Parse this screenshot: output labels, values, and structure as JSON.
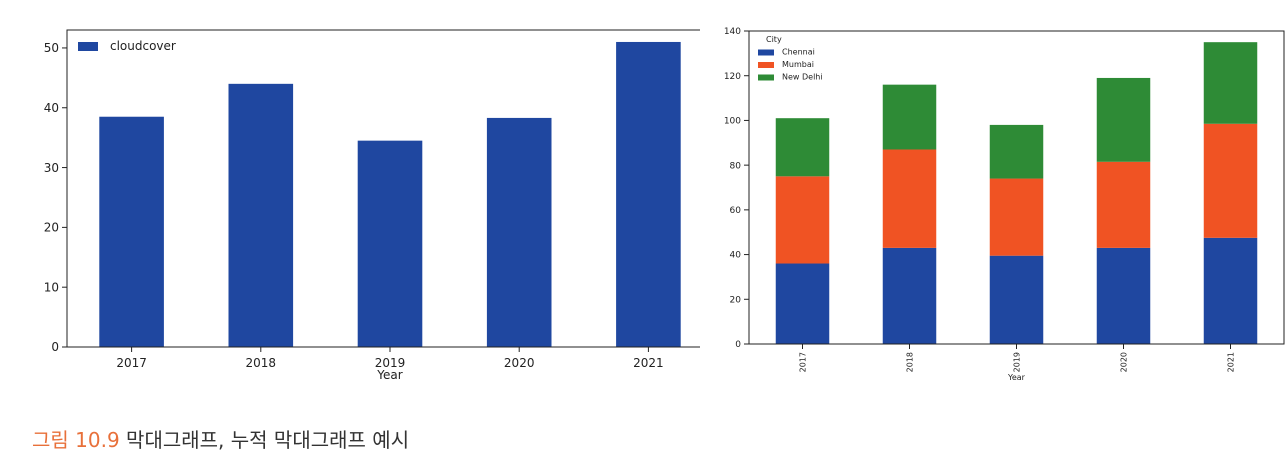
{
  "chart_data": [
    {
      "type": "bar",
      "categories": [
        "2017",
        "2018",
        "2019",
        "2020",
        "2021"
      ],
      "series": [
        {
          "name": "cloudcover",
          "values": [
            38.5,
            44,
            34.5,
            38.3,
            51
          ],
          "color": "#1f47a0"
        }
      ],
      "xlabel": "Year",
      "ylabel": "",
      "ylim": [
        0,
        53
      ],
      "yticks": [
        0,
        10,
        20,
        30,
        40,
        50
      ],
      "legend_position": "top-left",
      "grid": false
    },
    {
      "type": "bar",
      "stacked": true,
      "categories": [
        "2017",
        "2018",
        "2019",
        "2020",
        "2021"
      ],
      "legend_title": "City",
      "series": [
        {
          "name": "Chennai",
          "values": [
            36,
            43,
            39.5,
            43,
            47.5
          ],
          "color": "#1f47a0"
        },
        {
          "name": "Mumbai",
          "values": [
            39,
            44,
            34.5,
            38.5,
            51
          ],
          "color": "#f05323"
        },
        {
          "name": "New Delhi",
          "values": [
            26,
            29,
            24,
            37.5,
            36.5
          ],
          "color": "#2e8b36"
        }
      ],
      "xlabel": "Year",
      "ylabel": "",
      "ylim": [
        0,
        140
      ],
      "yticks": [
        0,
        20,
        40,
        60,
        80,
        100,
        120,
        140
      ],
      "legend_position": "top-left",
      "xtick_rotation": "vertical",
      "grid": false
    }
  ],
  "caption": {
    "figure_number": "그림 10.9",
    "text": " 막대그래프, 누적 막대그래프 예시"
  }
}
